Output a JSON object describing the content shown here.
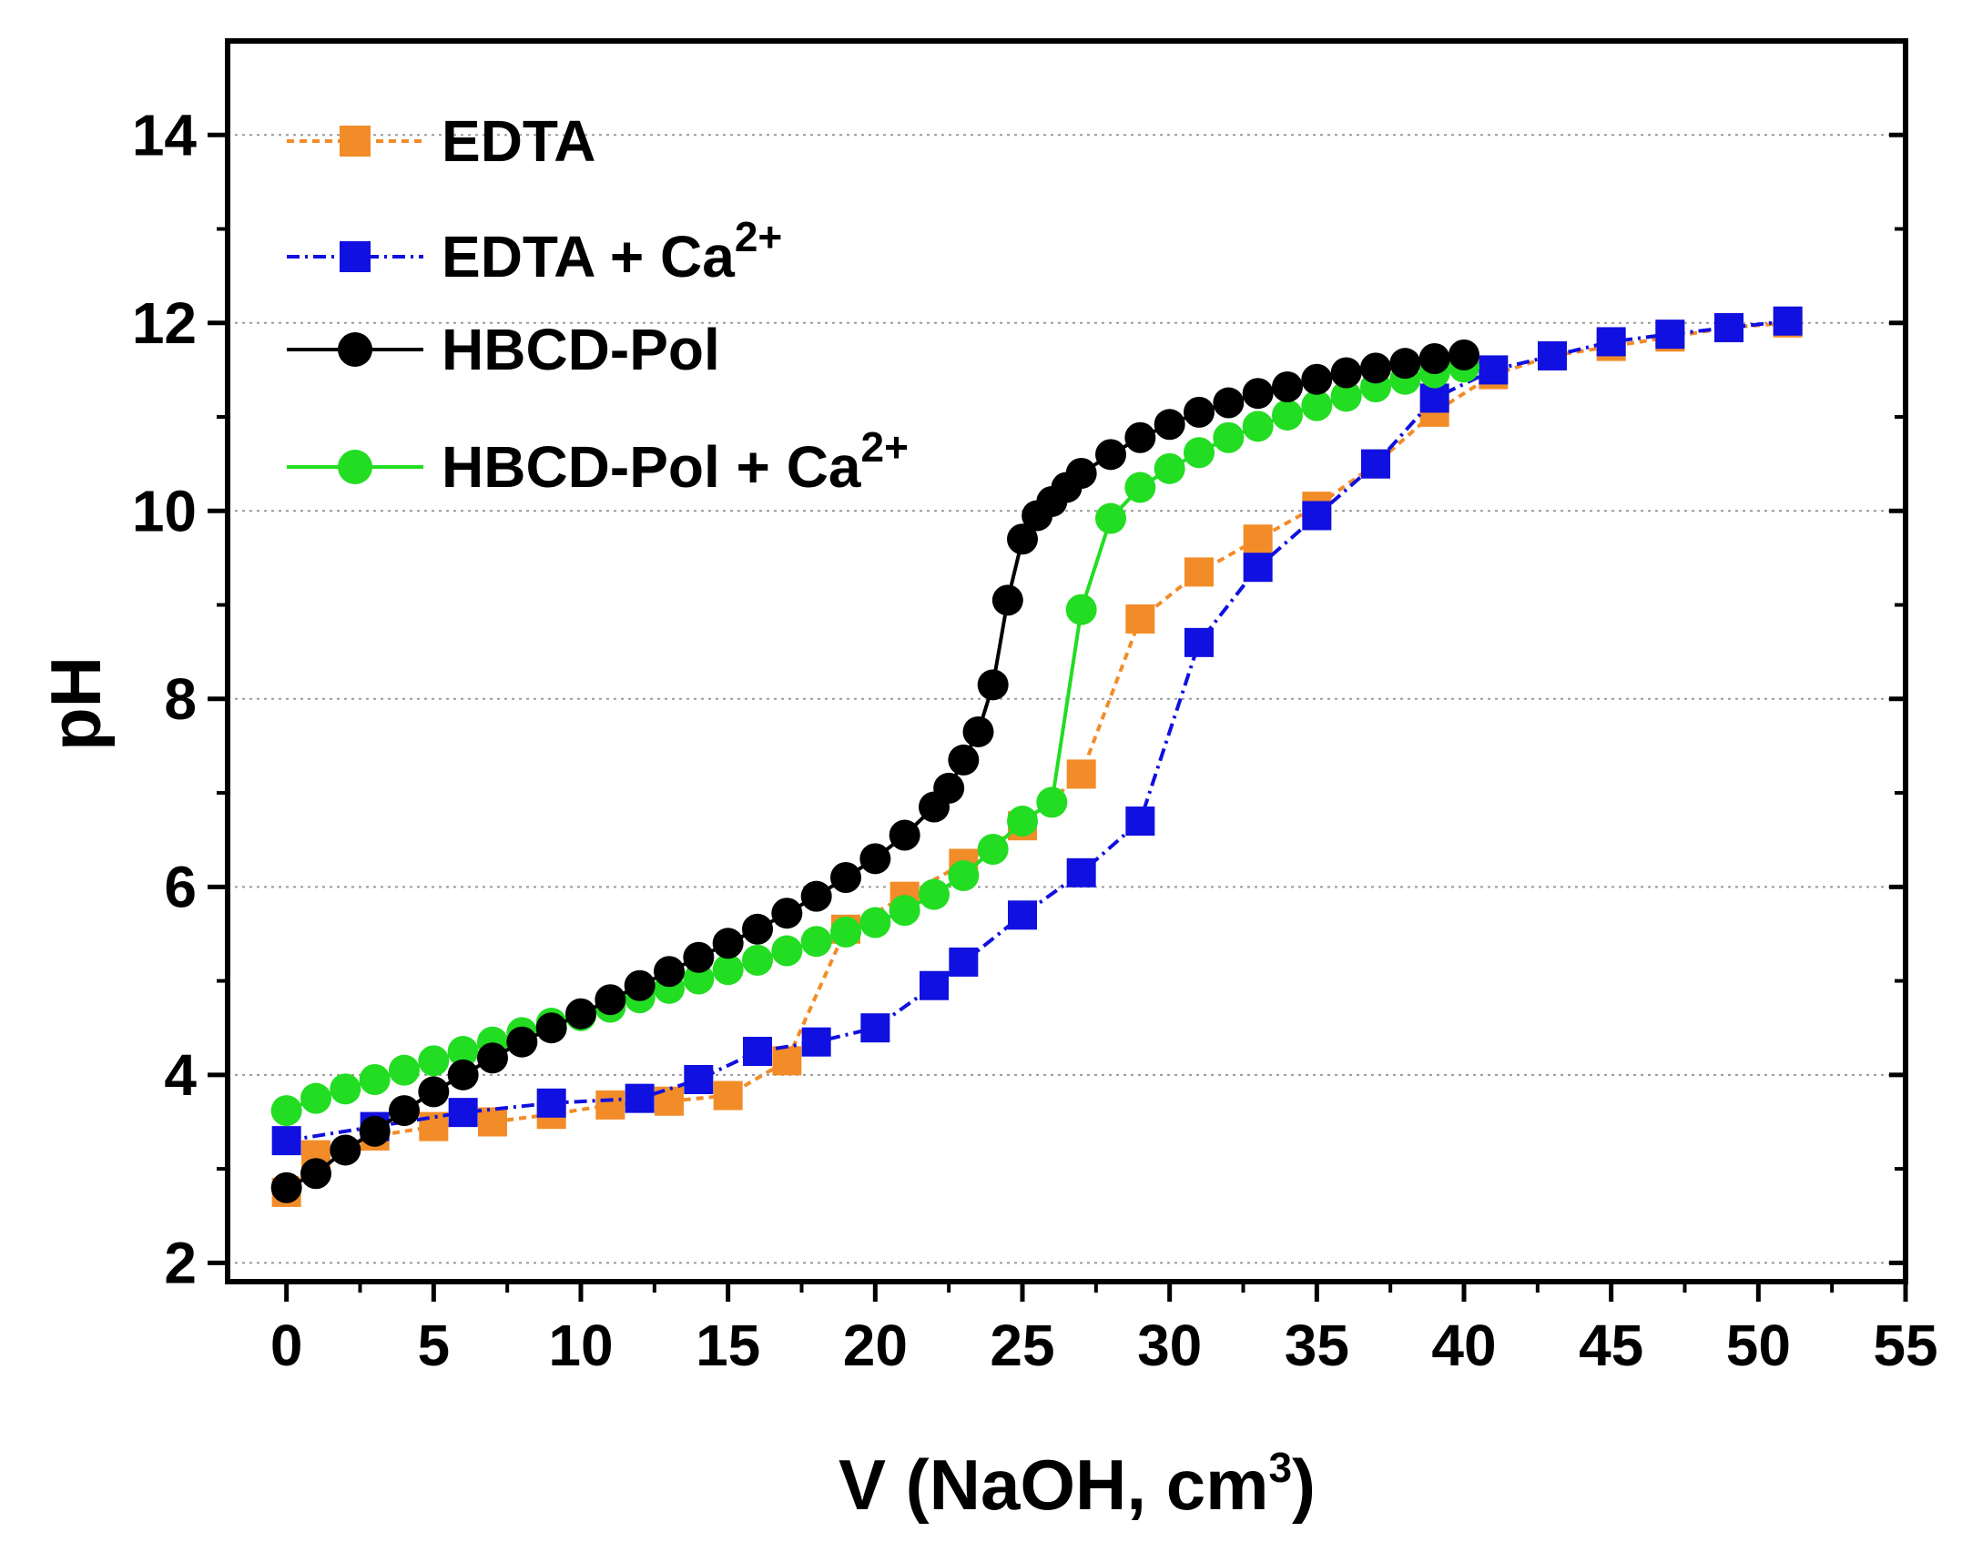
{
  "chart_data": {
    "type": "line",
    "title": "",
    "xlabel_main": "V (NaOH, cm",
    "xlabel_sup": "3",
    "xlabel_close": ")",
    "ylabel": "pH",
    "xlim": [
      -2,
      55
    ],
    "ylim": [
      1.8,
      15
    ],
    "xticks": [
      0,
      5,
      10,
      15,
      20,
      25,
      30,
      35,
      40,
      45,
      50,
      55
    ],
    "yticks": [
      2,
      4,
      6,
      8,
      10,
      12,
      14
    ],
    "xtick_labels": [
      "0",
      "5",
      "10",
      "15",
      "20",
      "25",
      "30",
      "35",
      "40",
      "45",
      "50",
      "55"
    ],
    "ytick_labels": [
      "2",
      "4",
      "6",
      "8",
      "10",
      "12",
      "14"
    ],
    "grid": "horizontal-dotted",
    "legend_position": "top-left",
    "series": [
      {
        "name": "EDTA",
        "label_main": "EDTA",
        "label_sup": "",
        "color": "#F28C28",
        "marker": "square",
        "dash": "8,6",
        "x": [
          0,
          1,
          3,
          5,
          7,
          9,
          11,
          13,
          15,
          17,
          19,
          21,
          23,
          25,
          27,
          29,
          31,
          33,
          35,
          37,
          39,
          41,
          43,
          45,
          47,
          49,
          51
        ],
        "y": [
          2.75,
          3.15,
          3.35,
          3.45,
          3.5,
          3.58,
          3.68,
          3.72,
          3.78,
          4.15,
          5.55,
          5.9,
          6.25,
          6.65,
          7.2,
          8.85,
          9.35,
          9.7,
          10.05,
          10.5,
          11.05,
          11.45,
          11.65,
          11.75,
          11.85,
          11.95,
          12.0
        ]
      },
      {
        "name": "EDTA + Ca2+",
        "label_main": "EDTA + Ca",
        "label_sup": "2+",
        "color": "#1010E0",
        "marker": "square",
        "dash": "14,6,3,6",
        "x": [
          0,
          3,
          6,
          9,
          12,
          14,
          16,
          18,
          20,
          22,
          23,
          25,
          27,
          29,
          31,
          33,
          35,
          37,
          39,
          41,
          43,
          45,
          47,
          49,
          51
        ],
        "y": [
          3.3,
          3.45,
          3.6,
          3.7,
          3.75,
          3.95,
          4.25,
          4.35,
          4.5,
          4.95,
          5.2,
          5.7,
          6.15,
          6.7,
          8.6,
          9.4,
          9.95,
          10.5,
          11.2,
          11.5,
          11.65,
          11.8,
          11.88,
          11.95,
          12.02
        ]
      },
      {
        "name": "HBCD-Pol",
        "label_main": "HBCD-Pol",
        "label_sup": "",
        "color": "#000000",
        "marker": "circle",
        "dash": "",
        "x": [
          0,
          1,
          2,
          3,
          4,
          5,
          6,
          7,
          8,
          9,
          10,
          11,
          12,
          13,
          14,
          15,
          16,
          17,
          18,
          19,
          20,
          21,
          22,
          22.5,
          23,
          23.5,
          24,
          24.5,
          25,
          25.5,
          26,
          26.5,
          27,
          28,
          29,
          30,
          31,
          32,
          33,
          34,
          35,
          36,
          37,
          38,
          39,
          40
        ],
        "y": [
          2.8,
          2.95,
          3.2,
          3.4,
          3.62,
          3.82,
          4.0,
          4.18,
          4.35,
          4.5,
          4.65,
          4.8,
          4.95,
          5.1,
          5.25,
          5.4,
          5.55,
          5.72,
          5.9,
          6.1,
          6.3,
          6.55,
          6.85,
          7.05,
          7.35,
          7.65,
          8.15,
          9.05,
          9.7,
          9.95,
          10.1,
          10.25,
          10.4,
          10.6,
          10.78,
          10.92,
          11.05,
          11.15,
          11.25,
          11.32,
          11.4,
          11.47,
          11.52,
          11.57,
          11.62,
          11.66
        ]
      },
      {
        "name": "HBCD-Pol + Ca2+",
        "label_main": "HBCD-Pol + Ca",
        "label_sup": "2+",
        "color": "#22DD22",
        "marker": "circle",
        "dash": "",
        "x": [
          0,
          1,
          2,
          3,
          4,
          5,
          6,
          7,
          8,
          9,
          10,
          11,
          12,
          13,
          14,
          15,
          16,
          17,
          18,
          19,
          20,
          21,
          22,
          23,
          24,
          25,
          26,
          27,
          28,
          29,
          30,
          31,
          32,
          33,
          34,
          35,
          36,
          37,
          38,
          39,
          40
        ],
        "y": [
          3.62,
          3.75,
          3.85,
          3.95,
          4.05,
          4.15,
          4.25,
          4.35,
          4.45,
          4.55,
          4.63,
          4.72,
          4.82,
          4.92,
          5.02,
          5.12,
          5.22,
          5.32,
          5.42,
          5.52,
          5.62,
          5.75,
          5.92,
          6.12,
          6.4,
          6.7,
          6.9,
          8.95,
          9.92,
          10.25,
          10.45,
          10.62,
          10.78,
          10.9,
          11.02,
          11.12,
          11.22,
          11.32,
          11.4,
          11.47,
          11.53
        ]
      }
    ]
  }
}
